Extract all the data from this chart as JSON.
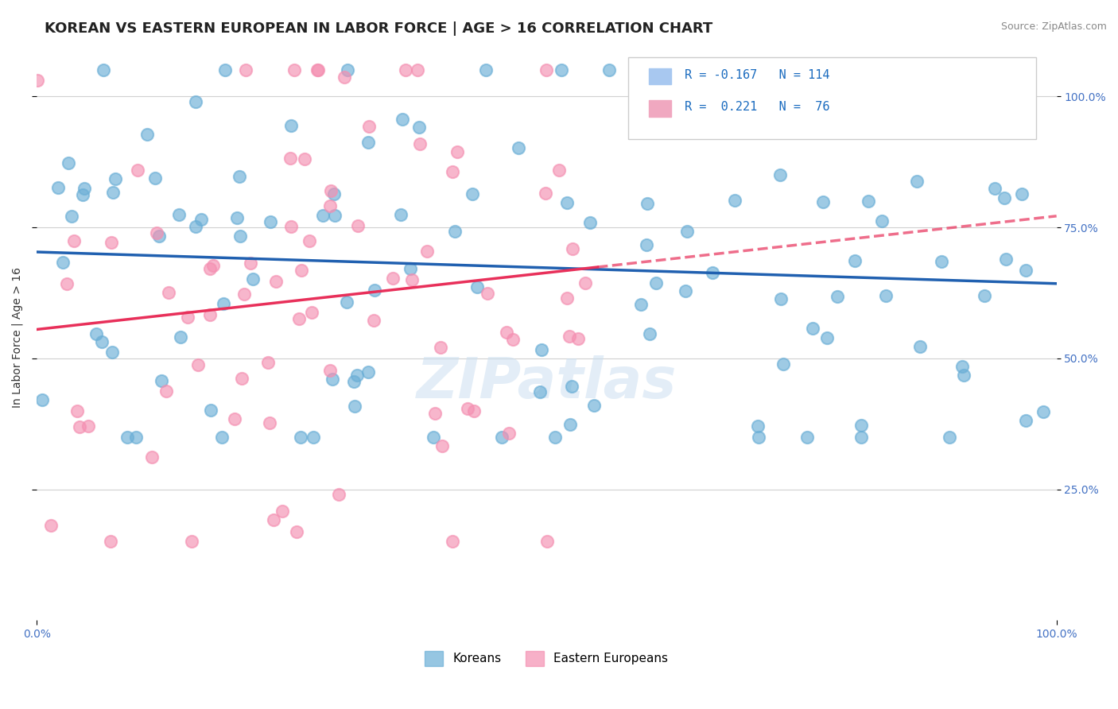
{
  "title": "KOREAN VS EASTERN EUROPEAN IN LABOR FORCE | AGE > 16 CORRELATION CHART",
  "source_text": "Source: ZipAtlas.com",
  "ylabel": "In Labor Force | Age > 16",
  "xlim": [
    0.0,
    1.0
  ],
  "ylim": [
    0.0,
    1.08
  ],
  "ytick_positions": [
    0.25,
    0.5,
    0.75,
    1.0
  ],
  "ytick_labels": [
    "25.0%",
    "50.0%",
    "75.0%",
    "100.0%"
  ],
  "xtick_labels": [
    "0.0%",
    "100.0%"
  ],
  "legend_labels_bottom": [
    "Koreans",
    "Eastern Europeans"
  ],
  "korean_R": -0.167,
  "korean_N": 114,
  "ee_R": 0.221,
  "ee_N": 76,
  "korean_color": "#6aaed6",
  "ee_color": "#f48fb1",
  "korean_line_color": "#2060b0",
  "ee_line_color": "#e8305a",
  "background_color": "#ffffff",
  "grid_color": "#d0d0d0",
  "watermark_text": "ZIPatlas",
  "title_fontsize": 13,
  "axis_label_fontsize": 10,
  "tick_fontsize": 10,
  "right_tick_color": "#4472c4",
  "korean_seed": 42,
  "ee_seed": 7
}
